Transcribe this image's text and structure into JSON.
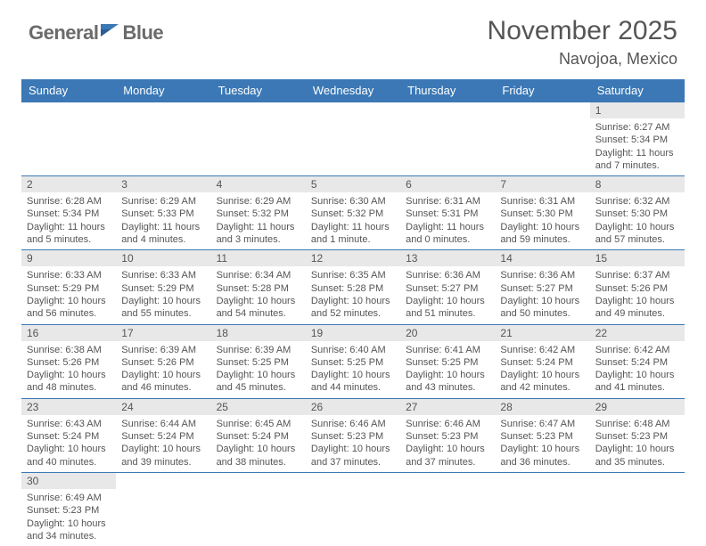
{
  "logo": {
    "text1": "General",
    "text2": "Blue"
  },
  "title": "November 2025",
  "location": "Navojoa, Mexico",
  "weekdays": [
    "Sunday",
    "Monday",
    "Tuesday",
    "Wednesday",
    "Thursday",
    "Friday",
    "Saturday"
  ],
  "colors": {
    "header_bg": "#3b78b5",
    "header_text": "#ffffff",
    "daynum_bg": "#e8e8e8",
    "border": "#3b78b5",
    "text": "#555555",
    "logo_blue": "#3b78b5"
  },
  "weeks": [
    [
      {
        "empty": true
      },
      {
        "empty": true
      },
      {
        "empty": true
      },
      {
        "empty": true
      },
      {
        "empty": true
      },
      {
        "empty": true
      },
      {
        "day": "1",
        "sunrise": "Sunrise: 6:27 AM",
        "sunset": "Sunset: 5:34 PM",
        "daylight": "Daylight: 11 hours and 7 minutes."
      }
    ],
    [
      {
        "day": "2",
        "sunrise": "Sunrise: 6:28 AM",
        "sunset": "Sunset: 5:34 PM",
        "daylight": "Daylight: 11 hours and 5 minutes."
      },
      {
        "day": "3",
        "sunrise": "Sunrise: 6:29 AM",
        "sunset": "Sunset: 5:33 PM",
        "daylight": "Daylight: 11 hours and 4 minutes."
      },
      {
        "day": "4",
        "sunrise": "Sunrise: 6:29 AM",
        "sunset": "Sunset: 5:32 PM",
        "daylight": "Daylight: 11 hours and 3 minutes."
      },
      {
        "day": "5",
        "sunrise": "Sunrise: 6:30 AM",
        "sunset": "Sunset: 5:32 PM",
        "daylight": "Daylight: 11 hours and 1 minute."
      },
      {
        "day": "6",
        "sunrise": "Sunrise: 6:31 AM",
        "sunset": "Sunset: 5:31 PM",
        "daylight": "Daylight: 11 hours and 0 minutes."
      },
      {
        "day": "7",
        "sunrise": "Sunrise: 6:31 AM",
        "sunset": "Sunset: 5:30 PM",
        "daylight": "Daylight: 10 hours and 59 minutes."
      },
      {
        "day": "8",
        "sunrise": "Sunrise: 6:32 AM",
        "sunset": "Sunset: 5:30 PM",
        "daylight": "Daylight: 10 hours and 57 minutes."
      }
    ],
    [
      {
        "day": "9",
        "sunrise": "Sunrise: 6:33 AM",
        "sunset": "Sunset: 5:29 PM",
        "daylight": "Daylight: 10 hours and 56 minutes."
      },
      {
        "day": "10",
        "sunrise": "Sunrise: 6:33 AM",
        "sunset": "Sunset: 5:29 PM",
        "daylight": "Daylight: 10 hours and 55 minutes."
      },
      {
        "day": "11",
        "sunrise": "Sunrise: 6:34 AM",
        "sunset": "Sunset: 5:28 PM",
        "daylight": "Daylight: 10 hours and 54 minutes."
      },
      {
        "day": "12",
        "sunrise": "Sunrise: 6:35 AM",
        "sunset": "Sunset: 5:28 PM",
        "daylight": "Daylight: 10 hours and 52 minutes."
      },
      {
        "day": "13",
        "sunrise": "Sunrise: 6:36 AM",
        "sunset": "Sunset: 5:27 PM",
        "daylight": "Daylight: 10 hours and 51 minutes."
      },
      {
        "day": "14",
        "sunrise": "Sunrise: 6:36 AM",
        "sunset": "Sunset: 5:27 PM",
        "daylight": "Daylight: 10 hours and 50 minutes."
      },
      {
        "day": "15",
        "sunrise": "Sunrise: 6:37 AM",
        "sunset": "Sunset: 5:26 PM",
        "daylight": "Daylight: 10 hours and 49 minutes."
      }
    ],
    [
      {
        "day": "16",
        "sunrise": "Sunrise: 6:38 AM",
        "sunset": "Sunset: 5:26 PM",
        "daylight": "Daylight: 10 hours and 48 minutes."
      },
      {
        "day": "17",
        "sunrise": "Sunrise: 6:39 AM",
        "sunset": "Sunset: 5:26 PM",
        "daylight": "Daylight: 10 hours and 46 minutes."
      },
      {
        "day": "18",
        "sunrise": "Sunrise: 6:39 AM",
        "sunset": "Sunset: 5:25 PM",
        "daylight": "Daylight: 10 hours and 45 minutes."
      },
      {
        "day": "19",
        "sunrise": "Sunrise: 6:40 AM",
        "sunset": "Sunset: 5:25 PM",
        "daylight": "Daylight: 10 hours and 44 minutes."
      },
      {
        "day": "20",
        "sunrise": "Sunrise: 6:41 AM",
        "sunset": "Sunset: 5:25 PM",
        "daylight": "Daylight: 10 hours and 43 minutes."
      },
      {
        "day": "21",
        "sunrise": "Sunrise: 6:42 AM",
        "sunset": "Sunset: 5:24 PM",
        "daylight": "Daylight: 10 hours and 42 minutes."
      },
      {
        "day": "22",
        "sunrise": "Sunrise: 6:42 AM",
        "sunset": "Sunset: 5:24 PM",
        "daylight": "Daylight: 10 hours and 41 minutes."
      }
    ],
    [
      {
        "day": "23",
        "sunrise": "Sunrise: 6:43 AM",
        "sunset": "Sunset: 5:24 PM",
        "daylight": "Daylight: 10 hours and 40 minutes."
      },
      {
        "day": "24",
        "sunrise": "Sunrise: 6:44 AM",
        "sunset": "Sunset: 5:24 PM",
        "daylight": "Daylight: 10 hours and 39 minutes."
      },
      {
        "day": "25",
        "sunrise": "Sunrise: 6:45 AM",
        "sunset": "Sunset: 5:24 PM",
        "daylight": "Daylight: 10 hours and 38 minutes."
      },
      {
        "day": "26",
        "sunrise": "Sunrise: 6:46 AM",
        "sunset": "Sunset: 5:23 PM",
        "daylight": "Daylight: 10 hours and 37 minutes."
      },
      {
        "day": "27",
        "sunrise": "Sunrise: 6:46 AM",
        "sunset": "Sunset: 5:23 PM",
        "daylight": "Daylight: 10 hours and 37 minutes."
      },
      {
        "day": "28",
        "sunrise": "Sunrise: 6:47 AM",
        "sunset": "Sunset: 5:23 PM",
        "daylight": "Daylight: 10 hours and 36 minutes."
      },
      {
        "day": "29",
        "sunrise": "Sunrise: 6:48 AM",
        "sunset": "Sunset: 5:23 PM",
        "daylight": "Daylight: 10 hours and 35 minutes."
      }
    ],
    [
      {
        "day": "30",
        "sunrise": "Sunrise: 6:49 AM",
        "sunset": "Sunset: 5:23 PM",
        "daylight": "Daylight: 10 hours and 34 minutes."
      },
      {
        "empty": true
      },
      {
        "empty": true
      },
      {
        "empty": true
      },
      {
        "empty": true
      },
      {
        "empty": true
      },
      {
        "empty": true
      }
    ]
  ]
}
